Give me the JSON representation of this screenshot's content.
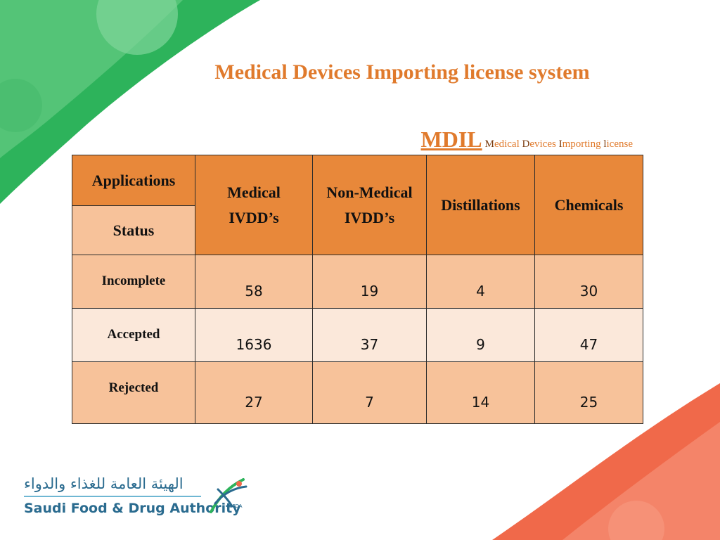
{
  "slide": {
    "title": "Medical Devices Importing license system",
    "mdil": {
      "acronym": "MDIL",
      "expansion": [
        {
          "cap": "M",
          "rest": "edical "
        },
        {
          "cap": "D",
          "rest": "evices "
        },
        {
          "cap": "I",
          "rest": "mporting "
        },
        {
          "cap": "l",
          "rest": "icense"
        }
      ]
    }
  },
  "table": {
    "header_applications": "Applications",
    "header_status": "Status",
    "columns": [
      "Medical IVDD’s",
      "Non-Medical IVDD’s",
      "Distillations",
      "Chemicals"
    ],
    "rows": [
      {
        "label": "Incomplete",
        "values": [
          "58",
          "19",
          "4",
          "30"
        ]
      },
      {
        "label": "Accepted",
        "values": [
          "1636",
          "37",
          "9",
          "47"
        ]
      },
      {
        "label": "Rejected",
        "values": [
          "27",
          "7",
          "14",
          "25"
        ]
      }
    ]
  },
  "logo": {
    "arabic": "الهيئة العامة للغذاء والدواء",
    "english": "Saudi Food & Drug Authority",
    "badge": "SFDA"
  },
  "colors": {
    "accent_orange": "#e07a2c",
    "header_fill": "#e8883a",
    "row_fill": "#f7c29a",
    "row_alt_fill": "#fbe8da",
    "green": "#2db35b",
    "coral": "#f0694a"
  }
}
